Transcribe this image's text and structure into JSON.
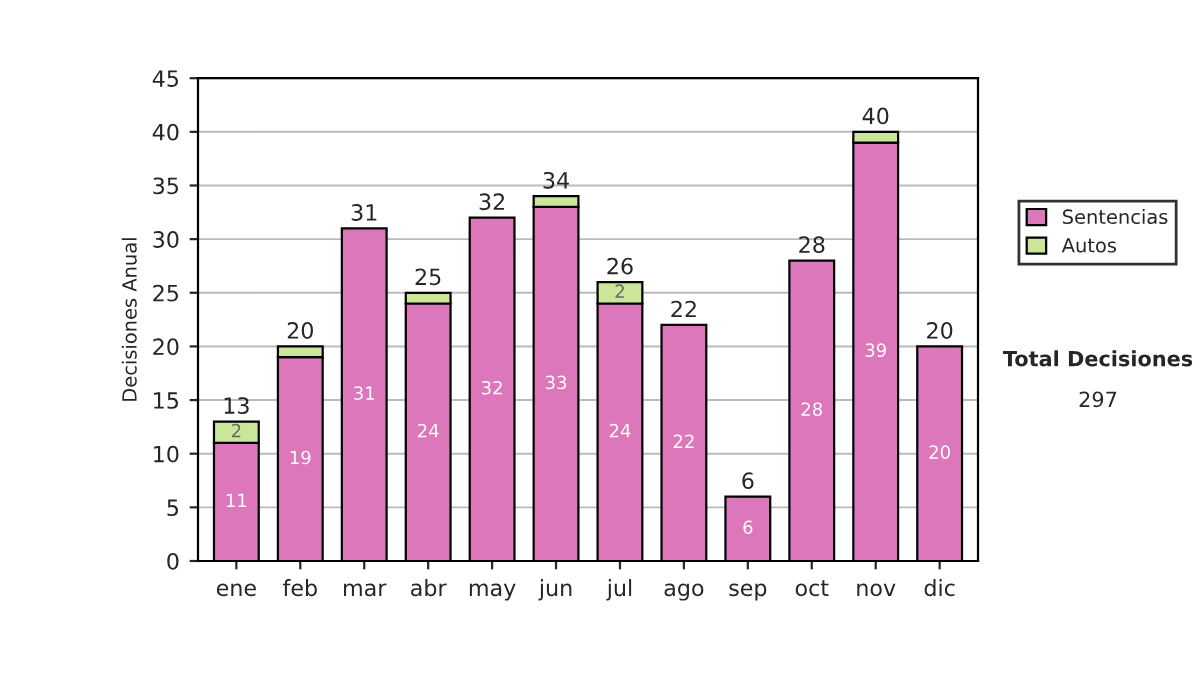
{
  "chart_data": {
    "type": "bar",
    "ylabel": "Decisiones Anual",
    "stacked": true,
    "categories": [
      "ene",
      "feb",
      "mar",
      "abr",
      "may",
      "jun",
      "jul",
      "ago",
      "sep",
      "oct",
      "nov",
      "dic"
    ],
    "series": [
      {
        "name": "Sentencias",
        "color": "#dd77bb",
        "values": [
          11,
          19,
          31,
          24,
          32,
          33,
          24,
          22,
          6,
          28,
          39,
          20
        ],
        "value_labels": [
          "11",
          "19",
          "31",
          "24",
          "32",
          "33",
          "24",
          "22",
          "6",
          "28",
          "39",
          "20"
        ]
      },
      {
        "name": "Autos",
        "color": "#cce699",
        "values": [
          2,
          1,
          null,
          1,
          null,
          1,
          2,
          null,
          null,
          null,
          1,
          null
        ],
        "value_labels": [
          "2",
          null,
          null,
          null,
          null,
          null,
          "2",
          null,
          null,
          null,
          null,
          null
        ]
      }
    ],
    "totals": [
      "13",
      "20",
      "31",
      "25",
      "32",
      "34",
      "26",
      "22",
      "6",
      "28",
      "40",
      "20"
    ],
    "ylim": [
      0,
      45
    ],
    "yticks": [
      0,
      5,
      10,
      15,
      20,
      25,
      30,
      35,
      40,
      45
    ],
    "grid": "y",
    "legend": "right",
    "annotations": [
      "Total Decisiones",
      "297"
    ]
  }
}
